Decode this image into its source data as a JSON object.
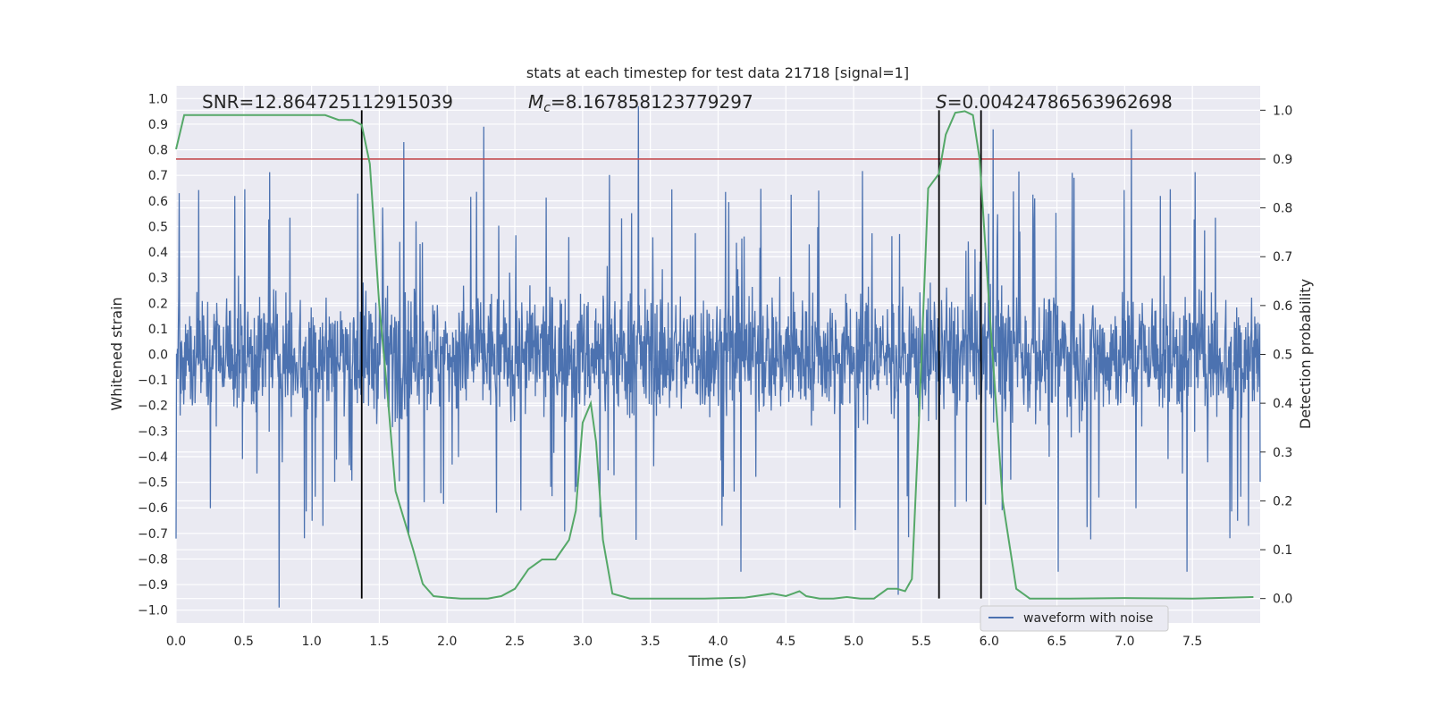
{
  "chart_data": {
    "type": "line",
    "title": "stats at each timestep for test data 21718 [signal=1]",
    "xlabel": "Time (s)",
    "ylabel_left": "Whitened strain",
    "ylabel_right": "Detection probability",
    "xlim": [
      0,
      8
    ],
    "ylim_left": [
      -1.05,
      1.05
    ],
    "ylim_right": [
      -0.05,
      1.05
    ],
    "grid": true,
    "x_ticks": [
      0.0,
      0.5,
      1.0,
      1.5,
      2.0,
      2.5,
      3.0,
      3.5,
      4.0,
      4.5,
      5.0,
      5.5,
      6.0,
      6.5,
      7.0,
      7.5
    ],
    "x_tick_labels": [
      "0.0",
      "0.5",
      "1.0",
      "1.5",
      "2.0",
      "2.5",
      "3.0",
      "3.5",
      "4.0",
      "4.5",
      "5.0",
      "5.5",
      "6.0",
      "6.5",
      "7.0",
      "7.5"
    ],
    "y_ticks_left": [
      1.0,
      0.9,
      0.8,
      0.7,
      0.6,
      0.5,
      0.4,
      0.3,
      0.2,
      0.1,
      0.0,
      -0.1,
      -0.2,
      -0.3,
      -0.4,
      -0.5,
      -0.6,
      -0.7,
      -0.8,
      -0.9,
      -1.0
    ],
    "y_tick_labels_left": [
      "1.0",
      "0.9",
      "0.8",
      "0.7",
      "0.6",
      "0.5",
      "0.4",
      "0.3",
      "0.2",
      "0.1",
      "0.0",
      "−0.1",
      "−0.2",
      "−0.3",
      "−0.4",
      "−0.5",
      "−0.6",
      "−0.7",
      "−0.8",
      "−0.9",
      "−1.0"
    ],
    "y_ticks_right": [
      1.0,
      0.9,
      0.8,
      0.7,
      0.6,
      0.5,
      0.4,
      0.3,
      0.2,
      0.1,
      0.0
    ],
    "y_tick_labels_right": [
      "1.0",
      "0.9",
      "0.8",
      "0.7",
      "0.6",
      "0.5",
      "0.4",
      "0.3",
      "0.2",
      "0.1",
      "0.0"
    ],
    "annotations": {
      "snr": "SNR=12.864725112915039",
      "mc_symbol": "M",
      "mc_sub": "c",
      "mc_value": "=8.167858123779297",
      "s_symbol": "S",
      "s_value": "=0.00424786563962698"
    },
    "threshold": {
      "value": 0.9,
      "axis": "right",
      "color": "#c44e52"
    },
    "vertical_lines": [
      1.37,
      5.63,
      5.94
    ],
    "legend": {
      "label": "waveform with noise",
      "location": "lower-right"
    },
    "series": [
      {
        "name": "waveform with noise",
        "axis": "left",
        "color": "#4c72b0",
        "description_points": "dense noisy whitened strain, envelope approx ±0.5 with spikes to ±1.0",
        "spikes": [
          {
            "x": 0.0,
            "y": -0.72
          },
          {
            "x": 0.76,
            "y": -0.99
          },
          {
            "x": 2.27,
            "y": 0.89
          },
          {
            "x": 1.68,
            "y": 0.83
          },
          {
            "x": 3.41,
            "y": 0.97
          },
          {
            "x": 5.33,
            "y": -0.94
          },
          {
            "x": 6.03,
            "y": 0.88
          },
          {
            "x": 7.05,
            "y": 0.88
          },
          {
            "x": 6.51,
            "y": -0.85
          },
          {
            "x": 7.46,
            "y": -0.85
          },
          {
            "x": 4.17,
            "y": -0.85
          }
        ]
      },
      {
        "name": "",
        "axis": "right",
        "color": "#55a868",
        "x": [
          0.0,
          0.06,
          0.15,
          0.3,
          0.6,
          0.9,
          1.1,
          1.2,
          1.3,
          1.37,
          1.43,
          1.5,
          1.56,
          1.62,
          1.75,
          1.82,
          1.9,
          2.0,
          2.1,
          2.2,
          2.3,
          2.4,
          2.5,
          2.6,
          2.7,
          2.8,
          2.85,
          2.9,
          2.95,
          3.0,
          3.06,
          3.1,
          3.15,
          3.22,
          3.35,
          3.6,
          3.9,
          4.2,
          4.4,
          4.5,
          4.6,
          4.65,
          4.75,
          4.85,
          4.95,
          5.05,
          5.15,
          5.25,
          5.32,
          5.38,
          5.43,
          5.48,
          5.55,
          5.63,
          5.68,
          5.75,
          5.82,
          5.88,
          5.93,
          6.0,
          6.1,
          6.2,
          6.3,
          6.6,
          7.0,
          7.5,
          7.95
        ],
        "values": [
          0.92,
          0.99,
          0.99,
          0.99,
          0.99,
          0.99,
          0.99,
          0.98,
          0.98,
          0.97,
          0.89,
          0.6,
          0.42,
          0.22,
          0.1,
          0.03,
          0.005,
          0.002,
          0.0,
          0.0,
          0.0,
          0.005,
          0.02,
          0.06,
          0.08,
          0.08,
          0.1,
          0.12,
          0.18,
          0.36,
          0.4,
          0.32,
          0.12,
          0.01,
          0.0,
          0.0,
          0.0,
          0.002,
          0.01,
          0.005,
          0.015,
          0.005,
          0.0,
          0.0,
          0.003,
          0.0,
          0.0,
          0.02,
          0.02,
          0.015,
          0.04,
          0.35,
          0.84,
          0.87,
          0.95,
          0.995,
          0.998,
          0.99,
          0.9,
          0.6,
          0.2,
          0.02,
          0.0,
          0.0,
          0.001,
          0.0,
          0.003
        ]
      }
    ]
  }
}
